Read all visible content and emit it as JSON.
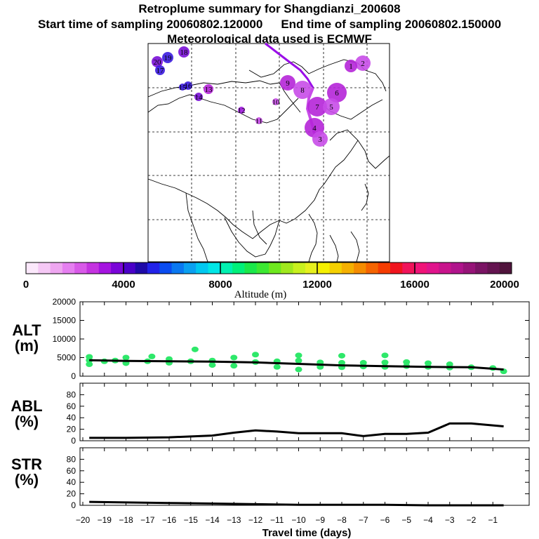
{
  "header": {
    "title": "Retroplume summary for Shangdianzi_200608",
    "start_label": "Start time of sampling 20060802.120000",
    "end_label": "End time of sampling 20060802.150000",
    "met_label": "Meteorological data used is ECMWF"
  },
  "map": {
    "markers": [
      {
        "label": "20",
        "color": "#7a10d8"
      },
      {
        "label": "19",
        "color": "#3b1be0"
      },
      {
        "label": "18",
        "color": "#7a10d8"
      },
      {
        "label": "17",
        "color": "#3b1be0"
      },
      {
        "label": "16",
        "color": "#3b1be0"
      },
      {
        "label": "15",
        "color": "#3b1be0"
      },
      {
        "label": "14",
        "color": "#7a10d8"
      },
      {
        "label": "13",
        "color": "#b525d8"
      },
      {
        "label": "12",
        "color": "#a118e0"
      },
      {
        "label": "11",
        "color": "#c84ce8"
      },
      {
        "label": "10",
        "color": "#c84ce8"
      },
      {
        "label": "9",
        "color": "#b525d8"
      },
      {
        "label": "8",
        "color": "#c84ce8"
      },
      {
        "label": "7",
        "color": "#b525d8"
      },
      {
        "label": "6",
        "color": "#b525d8"
      },
      {
        "label": "5",
        "color": "#c84ce8"
      },
      {
        "label": "4",
        "color": "#b525d8"
      },
      {
        "label": "3",
        "color": "#c84ce8"
      },
      {
        "label": "2",
        "color": "#c84ce8"
      },
      {
        "label": "1",
        "color": "#b525d8"
      }
    ]
  },
  "colorbar": {
    "ticks": [
      "0",
      "4000",
      "8000",
      "12000",
      "16000",
      "20000"
    ],
    "label": "Altitude (m)",
    "colors": [
      "#fbe8fb",
      "#f5c8f5",
      "#eea6f0",
      "#e57ff0",
      "#d85ae8",
      "#c433e0",
      "#a514e0",
      "#7a05d8",
      "#4b00c8",
      "#1f0aa8",
      "#2222e8",
      "#0a4cf0",
      "#0a78f0",
      "#0aa0f0",
      "#00c8f0",
      "#00e6e6",
      "#00f0b0",
      "#00f07a",
      "#1ae84a",
      "#3ce832",
      "#6ee81e",
      "#a0e81e",
      "#c8f01e",
      "#e6f01e",
      "#f5f000",
      "#f5d000",
      "#f5b000",
      "#f58c00",
      "#f56400",
      "#f53c00",
      "#f0141e",
      "#f0145a",
      "#f01478",
      "#e0148c",
      "#c8148c",
      "#b0148c",
      "#961478",
      "#7a1464",
      "#641450",
      "#50143c"
    ]
  },
  "chart_data": [
    {
      "type": "line",
      "panel": "ALT",
      "ylabel_line1": "ALT",
      "ylabel_line2": "(m)",
      "ylim": [
        0,
        20000
      ],
      "yticks": [
        "0",
        "5000",
        "10000",
        "15000",
        "20000"
      ],
      "x": [
        -19.7,
        -18,
        -16,
        -14,
        -12,
        -10,
        -8,
        -6,
        -4,
        -2,
        -0.5
      ],
      "values": [
        4300,
        4100,
        4000,
        3900,
        3700,
        3300,
        2900,
        2700,
        2500,
        2400,
        1800
      ],
      "spread_points": [
        [
          -19.7,
          4300
        ],
        [
          -19.7,
          3200
        ],
        [
          -19.7,
          5200
        ],
        [
          -19,
          4000
        ],
        [
          -18.5,
          4200
        ],
        [
          -18,
          3500
        ],
        [
          -18,
          5000
        ],
        [
          -17,
          4000
        ],
        [
          -16.8,
          5300
        ],
        [
          -16,
          3600
        ],
        [
          -16,
          4600
        ],
        [
          -15,
          4000
        ],
        [
          -14.8,
          7200
        ],
        [
          -14,
          4200
        ],
        [
          -14,
          3000
        ],
        [
          -13,
          5000
        ],
        [
          -13,
          2800
        ],
        [
          -12,
          3800
        ],
        [
          -12,
          5800
        ],
        [
          -11,
          2500
        ],
        [
          -11,
          4000
        ],
        [
          -10,
          4200
        ],
        [
          -10,
          1800
        ],
        [
          -10,
          5600
        ],
        [
          -9,
          2500
        ],
        [
          -9,
          3700
        ],
        [
          -8,
          2400
        ],
        [
          -8,
          3600
        ],
        [
          -8,
          5500
        ],
        [
          -7,
          2600
        ],
        [
          -7,
          3600
        ],
        [
          -6,
          2500
        ],
        [
          -6,
          3700
        ],
        [
          -6,
          5600
        ],
        [
          -5,
          2700
        ],
        [
          -5,
          3800
        ],
        [
          -4,
          2500
        ],
        [
          -4,
          3500
        ],
        [
          -3,
          2300
        ],
        [
          -3,
          3200
        ],
        [
          -2,
          2400
        ],
        [
          -1,
          2200
        ],
        [
          -0.5,
          1300
        ]
      ]
    },
    {
      "type": "line",
      "panel": "ABL",
      "ylabel_line1": "ABL",
      "ylabel_line2": "(%)",
      "ylim": [
        0,
        100
      ],
      "yticks": [
        "0",
        "20",
        "40",
        "60",
        "80"
      ],
      "x": [
        -19.7,
        -18,
        -16,
        -14,
        -13,
        -12,
        -11,
        -10,
        -9,
        -8,
        -7,
        -6,
        -5,
        -4,
        -3,
        -2,
        -0.5
      ],
      "values": [
        5,
        5,
        6,
        9,
        14,
        18,
        16,
        13,
        13,
        13,
        8,
        12,
        12,
        14,
        30,
        30,
        25
      ]
    },
    {
      "type": "line",
      "panel": "STR",
      "ylabel_line1": "STR",
      "ylabel_line2": "(%)",
      "ylim": [
        0,
        100
      ],
      "yticks": [
        "0",
        "20",
        "40",
        "60",
        "80"
      ],
      "x": [
        -19.7,
        -18,
        -16,
        -14,
        -12,
        -10,
        -8,
        -6,
        -4,
        -2,
        -0.5
      ],
      "values": [
        6,
        5,
        4,
        3,
        2,
        1,
        1,
        1,
        0,
        0,
        0
      ],
      "xlabel": "Travel time (days)",
      "xticks": [
        "−20",
        "−19",
        "−18",
        "−17",
        "−16",
        "−15",
        "−14",
        "−13",
        "−12",
        "−11",
        "−10",
        "−9",
        "−8",
        "−7",
        "−6",
        "−5",
        "−4",
        "−3",
        "−2",
        "−1"
      ]
    }
  ]
}
